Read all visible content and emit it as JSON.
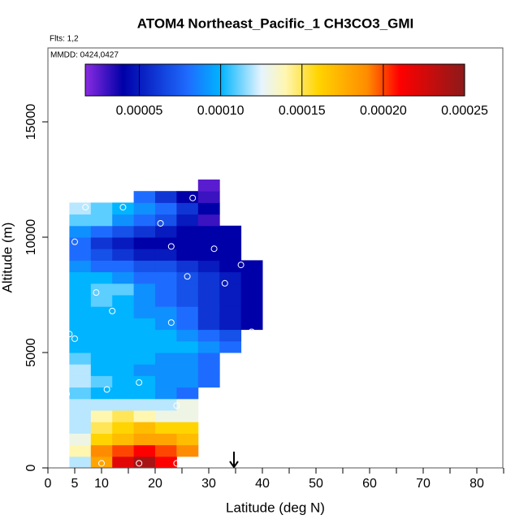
{
  "chart_data": {
    "type": "heatmap",
    "title": "ATOM4 Northeast_Pacific_1 CH3CO3_GMI",
    "flights": "Flts: 1,2",
    "dates": "MMDD: 0424,0427",
    "x_label": "Latitude (deg N)",
    "y_label": "Altitude (m)",
    "xlim": [
      0,
      84.85
    ],
    "ylim": [
      0,
      18204
    ],
    "xticks": [
      0,
      5,
      10,
      20,
      30,
      40,
      50,
      60,
      70,
      80
    ],
    "xticks_minor": [
      15,
      25,
      35,
      45,
      55,
      65,
      75,
      85
    ],
    "yticks": [
      0,
      5000,
      10000,
      15000
    ],
    "x": [
      4,
      8,
      12,
      16,
      20,
      24,
      28,
      32,
      36,
      40
    ],
    "y": [
      0,
      500,
      1000,
      1500,
      2000,
      2500,
      3000,
      3500,
      4000,
      4500,
      5000,
      5500,
      6000,
      6500,
      7000,
      7500,
      8000,
      8500,
      9000,
      9500,
      10000,
      10500,
      11000,
      11500,
      12000,
      12500
    ],
    "z": [
      [
        0.00012,
        0.00018,
        0.00022,
        0.00024,
        0.00021,
        null,
        null,
        null,
        null
      ],
      [
        0.00014,
        0.00019,
        0.0002,
        0.00021,
        0.0002,
        0.00019,
        null,
        null,
        null
      ],
      [
        0.00013,
        0.00016,
        0.00017,
        0.00018,
        0.00018,
        0.00017,
        null,
        null,
        null
      ],
      [
        0.00012,
        0.00015,
        0.00016,
        0.00017,
        0.00016,
        0.00016,
        null,
        null,
        null
      ],
      [
        0.00012,
        0.00014,
        0.00015,
        0.00014,
        0.00013,
        0.00013,
        null,
        null,
        null
      ],
      [
        0.00012,
        0.00012,
        0.00012,
        0.00012,
        0.00012,
        0.00013,
        null,
        null,
        null
      ],
      [
        0.00011,
        0.0001,
        0.0001,
        0.0001,
        9e-05,
        8e-05,
        null,
        null,
        null
      ],
      [
        0.00012,
        0.00011,
        0.0001,
        0.0001,
        9e-05,
        9e-05,
        8e-05,
        null,
        null
      ],
      [
        0.00012,
        0.0001,
        0.0001,
        9e-05,
        9e-05,
        9e-05,
        8e-05,
        null,
        null
      ],
      [
        0.00011,
        0.0001,
        0.0001,
        0.0001,
        9e-05,
        9e-05,
        8e-05,
        null,
        null
      ],
      [
        0.0001,
        0.0001,
        0.0001,
        0.0001,
        0.0001,
        0.0001,
        9e-05,
        8e-05,
        null
      ],
      [
        0.0001,
        0.0001,
        0.0001,
        0.0001,
        0.0001,
        9e-05,
        8e-05,
        7e-05,
        null
      ],
      [
        0.0001,
        0.0001,
        0.0001,
        0.0001,
        9e-05,
        8e-05,
        6e-05,
        5e-05,
        4e-05
      ],
      [
        0.0001,
        0.0001,
        0.0001,
        9e-05,
        9e-05,
        8e-05,
        6e-05,
        5e-05,
        4e-05
      ],
      [
        0.0001,
        0.00011,
        0.0001,
        9e-05,
        8e-05,
        7e-05,
        6e-05,
        5e-05,
        4e-05
      ],
      [
        0.0001,
        0.00011,
        0.00011,
        9e-05,
        8e-05,
        7e-05,
        6e-05,
        5e-05,
        4e-05
      ],
      [
        0.0001,
        0.0001,
        9e-05,
        8e-05,
        8e-05,
        7e-05,
        6e-05,
        5e-05,
        4e-05
      ],
      [
        9e-05,
        8e-05,
        8e-05,
        7e-05,
        7e-05,
        6e-05,
        5e-05,
        4e-05,
        4e-05
      ],
      [
        8e-05,
        7e-05,
        6e-05,
        5e-05,
        5e-05,
        4e-05,
        4e-05,
        4e-05,
        null
      ],
      [
        8e-05,
        6e-05,
        5e-05,
        4e-05,
        4e-05,
        4e-05,
        4e-05,
        4e-05,
        null
      ],
      [
        9e-05,
        8e-05,
        7e-05,
        6e-05,
        5e-05,
        4e-05,
        4e-05,
        4e-05,
        null
      ],
      [
        0.00011,
        0.00011,
        9e-05,
        8e-05,
        7e-05,
        5e-05,
        3e-05,
        null,
        null
      ],
      [
        0.00012,
        0.00011,
        0.0001,
        9e-05,
        8e-05,
        6e-05,
        4e-05,
        null,
        null
      ],
      [
        null,
        null,
        null,
        8e-05,
        6e-05,
        4e-05,
        3e-05,
        null,
        null
      ],
      [
        null,
        null,
        null,
        null,
        null,
        null,
        2.5e-05,
        null,
        null
      ]
    ],
    "points": {
      "x": [
        7,
        14,
        27,
        21,
        5,
        23,
        31,
        36,
        26,
        33,
        9,
        12,
        23,
        4,
        5,
        38,
        17,
        11,
        24,
        3.5,
        10,
        17,
        24
      ],
      "y": [
        11300,
        11300,
        11700,
        10600,
        9800,
        9600,
        9500,
        8800,
        8300,
        8000,
        7600,
        6800,
        6300,
        5800,
        5600,
        5900,
        3700,
        3400,
        2700,
        3200,
        200,
        200,
        200
      ]
    },
    "arrow_x": 34.7,
    "colorbar_lim": [
      1.68e-05,
      0.00025
    ],
    "colorbar_ticks": [
      5e-05,
      {
        "value": 0.0001,
        "label": "0.00010"
      },
      0.00015,
      {
        "value": 0.0002,
        "label": "0.00020"
      },
      0.00025
    ],
    "colorscale": [
      [
        1.68e-05,
        "#8a2be2"
      ],
      [
        4e-05,
        "#0000a8"
      ],
      [
        8e-05,
        "#1e6cff"
      ],
      [
        0.0001,
        "#00b4ff"
      ],
      [
        0.000125,
        "#e6f4ff"
      ],
      [
        0.00014,
        "#fff6b0"
      ],
      [
        0.00016,
        "#ffd400"
      ],
      [
        0.00019,
        "#ff8c00"
      ],
      [
        0.00021,
        "#ff0000"
      ],
      [
        0.00025,
        "#8b1a1a"
      ]
    ]
  }
}
